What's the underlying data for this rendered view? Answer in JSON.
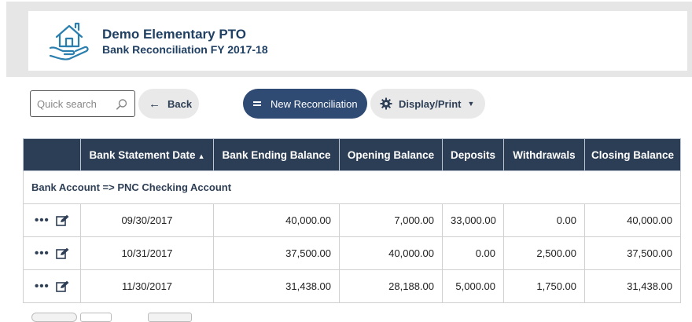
{
  "header": {
    "org_name": "Demo Elementary PTO",
    "page_subtitle": "Bank Reconciliation FY 2017-18",
    "logo_icon": "hand-house-icon"
  },
  "toolbar": {
    "search_placeholder": "Quick search",
    "back_label": "Back",
    "new_reconciliation_label": "New Reconciliation",
    "display_print_label": "Display/Print"
  },
  "table": {
    "columns": [
      "",
      "Bank Statement Date",
      "Bank Ending Balance",
      "Opening Balance",
      "Deposits",
      "Withdrawals",
      "Closing Balance"
    ],
    "group_label": "Bank Account => PNC Checking Account",
    "rows": [
      {
        "date": "09/30/2017",
        "bank_ending": "40,000.00",
        "opening": "7,000.00",
        "deposits": "33,000.00",
        "withdrawals": "0.00",
        "closing": "40,000.00"
      },
      {
        "date": "10/31/2017",
        "bank_ending": "37,500.00",
        "opening": "40,000.00",
        "deposits": "0.00",
        "withdrawals": "2,500.00",
        "closing": "37,500.00"
      },
      {
        "date": "11/30/2017",
        "bank_ending": "31,438.00",
        "opening": "28,188.00",
        "deposits": "5,000.00",
        "withdrawals": "1,750.00",
        "closing": "31,438.00"
      }
    ]
  },
  "colors": {
    "brand_navy": "#2c3e55",
    "button_primary": "#2f4a73",
    "title_text": "#1f3f63"
  }
}
